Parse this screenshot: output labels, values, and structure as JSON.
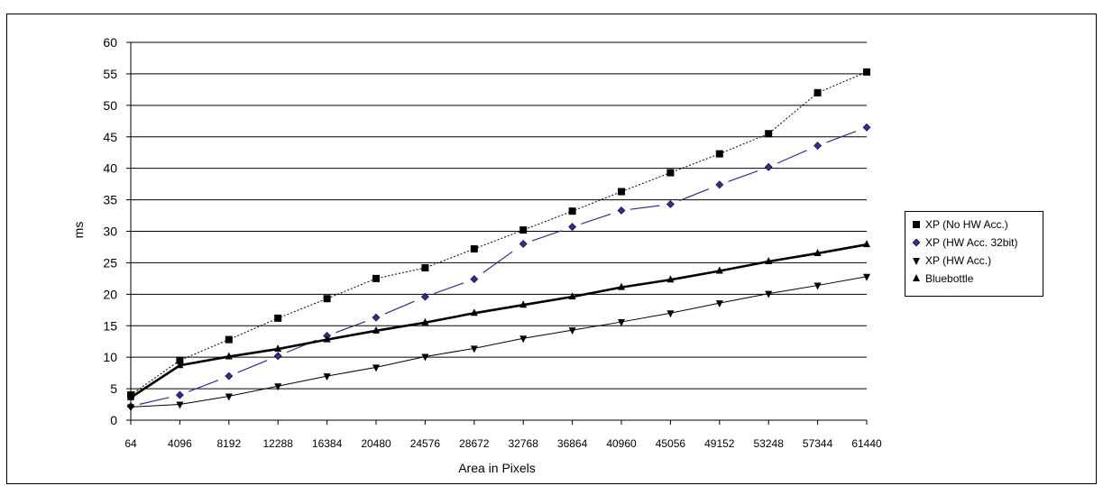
{
  "chart_data": {
    "type": "line",
    "title": "",
    "xlabel": "Area in Pixels",
    "ylabel": "ms",
    "ylim": [
      0,
      60
    ],
    "yticks": [
      0,
      5,
      10,
      15,
      20,
      25,
      30,
      35,
      40,
      45,
      50,
      55,
      60
    ],
    "grid": "horizontal",
    "legend_position": "right",
    "categories": [
      "64",
      "4096",
      "8192",
      "12288",
      "16384",
      "20480",
      "24576",
      "28672",
      "32768",
      "36864",
      "40960",
      "45056",
      "49152",
      "53248",
      "57344",
      "61440"
    ],
    "series": [
      {
        "name": "XP (No HW Acc.)",
        "marker": "square",
        "color": "#000000",
        "line_style": "dotted",
        "values": [
          4.0,
          9.5,
          12.8,
          16.2,
          19.3,
          22.5,
          24.2,
          27.2,
          30.2,
          33.2,
          36.3,
          39.3,
          42.3,
          45.5,
          52.0,
          55.3
        ]
      },
      {
        "name": "XP (HW Acc. 32bit)",
        "marker": "diamond",
        "color": "#3b2a8f",
        "line_style": "broken",
        "values": [
          2.2,
          4.0,
          7.0,
          10.2,
          13.4,
          16.3,
          19.6,
          22.4,
          28.0,
          30.7,
          33.3,
          34.3,
          37.4,
          40.2,
          43.6,
          46.5
        ]
      },
      {
        "name": "XP (HW Acc.)",
        "marker": "triangle-down",
        "color": "#000000",
        "line_style": "solid",
        "values": [
          2.1,
          2.5,
          3.8,
          5.4,
          7.0,
          8.4,
          10.1,
          11.4,
          13.0,
          14.3,
          15.6,
          17.0,
          18.6,
          20.1,
          21.4,
          22.8
        ]
      },
      {
        "name": "Bluebottle",
        "marker": "triangle-up",
        "color": "#000000",
        "line_style": "bold",
        "values": [
          3.6,
          8.7,
          10.1,
          11.3,
          12.8,
          14.2,
          15.5,
          17.0,
          18.3,
          19.6,
          21.1,
          22.3,
          23.7,
          25.2,
          26.5,
          27.9
        ]
      }
    ]
  }
}
